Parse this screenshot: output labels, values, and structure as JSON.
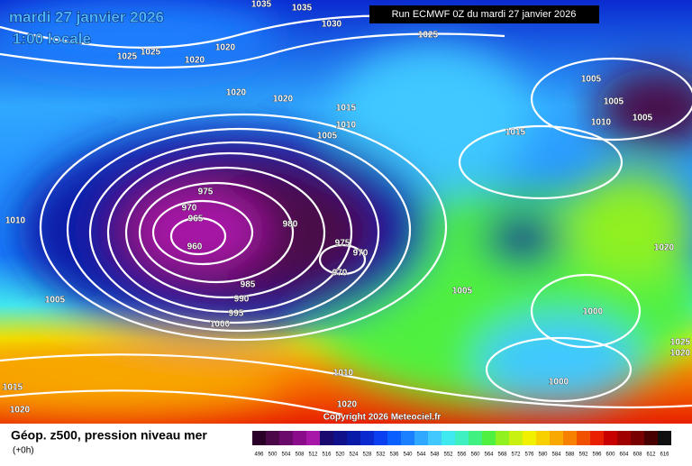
{
  "header": {
    "date": "mardi 27 janvier 2026",
    "time": "1:00 locale",
    "run": "Run ECMWF 0Z du mardi 27 janvier 2026"
  },
  "isobar_labels": [
    1035,
    1035,
    1030,
    1025,
    1025,
    1025,
    1020,
    1020,
    1020,
    1020,
    1015,
    1010,
    1005,
    1015,
    1005,
    1005,
    1010,
    1005,
    975,
    970,
    965,
    960,
    980,
    975,
    970,
    970,
    985,
    990,
    995,
    1000,
    1010,
    1005,
    1005,
    1020,
    1000,
    1025,
    1020,
    1000,
    1010,
    1020,
    1015,
    1020
  ],
  "copyright": "Copyright 2026 Meteociel.fr",
  "legend": {
    "title": "Géop. z500, pression niveau mer",
    "subtitle": "(+0h)",
    "scale": [
      {
        "value": 496,
        "color": "#2a0028"
      },
      {
        "value": 500,
        "color": "#4a0848"
      },
      {
        "value": 504,
        "color": "#6a0a6a"
      },
      {
        "value": 508,
        "color": "#8a0c8a"
      },
      {
        "value": 512,
        "color": "#a818a8"
      },
      {
        "value": 516,
        "color": "#1a0a70"
      },
      {
        "value": 520,
        "color": "#10108a"
      },
      {
        "value": 524,
        "color": "#0a1aa8"
      },
      {
        "value": 528,
        "color": "#0a2ad0"
      },
      {
        "value": 532,
        "color": "#0a40f0"
      },
      {
        "value": 536,
        "color": "#0a60ff"
      },
      {
        "value": 540,
        "color": "#1a80ff"
      },
      {
        "value": 544,
        "color": "#30a8ff"
      },
      {
        "value": 548,
        "color": "#40c8ff"
      },
      {
        "value": 552,
        "color": "#40e8f0"
      },
      {
        "value": 556,
        "color": "#40f0c0"
      },
      {
        "value": 560,
        "color": "#40f080"
      },
      {
        "value": 564,
        "color": "#50f040"
      },
      {
        "value": 568,
        "color": "#90f020"
      },
      {
        "value": 572,
        "color": "#c8f010"
      },
      {
        "value": 576,
        "color": "#f0f000"
      },
      {
        "value": 580,
        "color": "#f8d000"
      },
      {
        "value": 584,
        "color": "#f8a800"
      },
      {
        "value": 588,
        "color": "#f88000"
      },
      {
        "value": 592,
        "color": "#f05000"
      },
      {
        "value": 596,
        "color": "#e82000"
      },
      {
        "value": 600,
        "color": "#c80000"
      },
      {
        "value": 604,
        "color": "#a00000"
      },
      {
        "value": 608,
        "color": "#780000"
      },
      {
        "value": 612,
        "color": "#480000"
      },
      {
        "value": 616,
        "color": "#101010"
      }
    ]
  }
}
